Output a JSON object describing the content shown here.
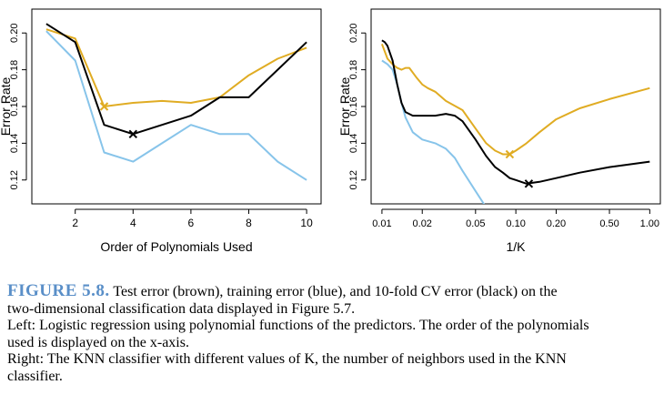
{
  "chart_data": [
    {
      "type": "line",
      "xlabel": "Order of Polynomials Used",
      "ylabel": "Error Rate",
      "xlim": [
        0.5,
        10.5
      ],
      "ylim": [
        0.107,
        0.213
      ],
      "xticks": [
        2,
        4,
        6,
        8,
        10
      ],
      "xtick_labels": [
        "2",
        "4",
        "6",
        "8",
        "10"
      ],
      "yticks": [
        0.12,
        0.14,
        0.16,
        0.18,
        0.2
      ],
      "ytick_labels": [
        "0.12",
        "0.14",
        "0.16",
        "0.18",
        "0.20"
      ],
      "grid": false,
      "series": [
        {
          "role": "training",
          "color": "#87c4ea",
          "x": [
            1,
            2,
            3,
            4,
            5,
            6,
            7,
            8,
            9,
            10
          ],
          "y": [
            0.201,
            0.185,
            0.135,
            0.13,
            0.14,
            0.15,
            0.145,
            0.145,
            0.13,
            0.12
          ]
        },
        {
          "role": "test",
          "color": "#e0ac23",
          "x": [
            1,
            2,
            3,
            4,
            5,
            6,
            7,
            8,
            9,
            10
          ],
          "y": [
            0.202,
            0.197,
            0.16,
            0.162,
            0.163,
            0.162,
            0.165,
            0.177,
            0.186,
            0.192
          ]
        },
        {
          "role": "cv",
          "color": "#000000",
          "x": [
            1,
            2,
            3,
            4,
            5,
            6,
            7,
            8,
            9,
            10
          ],
          "y": [
            0.205,
            0.195,
            0.15,
            0.145,
            0.15,
            0.155,
            0.165,
            0.165,
            0.18,
            0.195
          ]
        }
      ],
      "markers": [
        {
          "color": "#e0ac23",
          "x": 3,
          "y": 0.16
        },
        {
          "color": "#000000",
          "x": 4,
          "y": 0.145
        }
      ]
    },
    {
      "type": "line",
      "xlabel": "1/K",
      "ylabel": "Error Rate",
      "xscale": "log",
      "xlim": [
        0.0083,
        1.2
      ],
      "ylim": [
        0.107,
        0.213
      ],
      "xticks": [
        0.01,
        0.02,
        0.05,
        0.1,
        0.2,
        0.5,
        1.0
      ],
      "xtick_labels": [
        "0.01",
        "0.02",
        "0.05",
        "0.10",
        "0.20",
        "0.50",
        "1.00"
      ],
      "yticks": [
        0.12,
        0.14,
        0.16,
        0.18,
        0.2
      ],
      "ytick_labels": [
        "0.12",
        "0.14",
        "0.16",
        "0.18",
        "0.20"
      ],
      "grid": false,
      "series": [
        {
          "role": "training",
          "color": "#87c4ea",
          "x": [
            0.01,
            0.011,
            0.012,
            0.013,
            0.014,
            0.015,
            0.017,
            0.02,
            0.025,
            0.03,
            0.035,
            0.04,
            0.05,
            0.06,
            0.07
          ],
          "y": [
            0.185,
            0.183,
            0.18,
            0.172,
            0.162,
            0.154,
            0.146,
            0.142,
            0.14,
            0.137,
            0.132,
            0.125,
            0.114,
            0.105,
            0.1
          ]
        },
        {
          "role": "test",
          "color": "#e0ac23",
          "x": [
            0.01,
            0.011,
            0.012,
            0.013,
            0.014,
            0.015,
            0.016,
            0.018,
            0.02,
            0.022,
            0.025,
            0.03,
            0.04,
            0.05,
            0.06,
            0.07,
            0.08,
            0.09,
            0.1,
            0.12,
            0.15,
            0.2,
            0.3,
            0.5,
            1.0
          ],
          "y": [
            0.194,
            0.186,
            0.183,
            0.181,
            0.18,
            0.181,
            0.181,
            0.176,
            0.172,
            0.17,
            0.168,
            0.163,
            0.158,
            0.148,
            0.14,
            0.136,
            0.134,
            0.134,
            0.136,
            0.14,
            0.146,
            0.153,
            0.159,
            0.164,
            0.17
          ]
        },
        {
          "role": "cv",
          "color": "#000000",
          "x": [
            0.01,
            0.0105,
            0.011,
            0.012,
            0.013,
            0.014,
            0.015,
            0.017,
            0.02,
            0.025,
            0.03,
            0.035,
            0.04,
            0.05,
            0.06,
            0.07,
            0.08,
            0.09,
            0.1,
            0.12,
            0.15,
            0.2,
            0.3,
            0.5,
            1.0
          ],
          "y": [
            0.196,
            0.195,
            0.193,
            0.185,
            0.172,
            0.162,
            0.157,
            0.155,
            0.155,
            0.155,
            0.156,
            0.155,
            0.152,
            0.142,
            0.133,
            0.127,
            0.124,
            0.121,
            0.12,
            0.118,
            0.119,
            0.121,
            0.124,
            0.127,
            0.13
          ]
        }
      ],
      "markers": [
        {
          "color": "#e0ac23",
          "x": 0.09,
          "y": 0.134
        },
        {
          "color": "#000000",
          "x": 0.125,
          "y": 0.118
        }
      ]
    }
  ],
  "caption": {
    "figure_label": "FIGURE 5.8.",
    "line1": "Test error (brown), training error (blue), and 10-fold CV error (black) on the",
    "line2": "two-dimensional classification data displayed in Figure 5.7.",
    "line3": "Left: Logistic regression using polynomial functions of the predictors. The order of the polynomials",
    "line4": "used is displayed on the x-axis.",
    "line5": "Right: The KNN classifier with different values of K, the number of neighbors used in the KNN",
    "line6": "classifier."
  }
}
